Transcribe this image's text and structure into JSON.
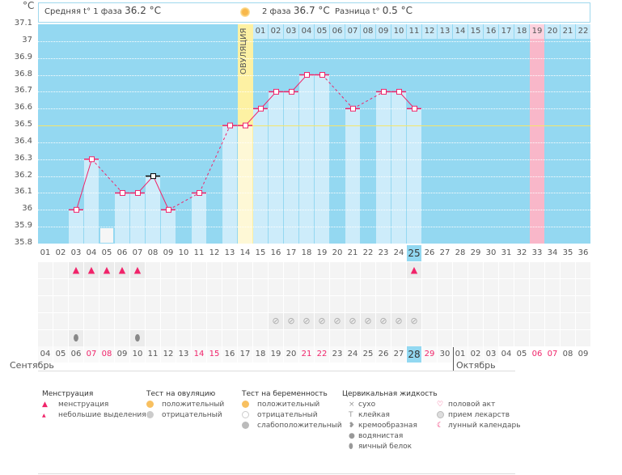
{
  "header": {
    "unit": "°C",
    "phase1_label": "Средняя t° 1 фаза",
    "phase1_value": "36.2 °C",
    "phase2_label": "2 фаза",
    "phase2_value": "36.7 °C",
    "diff_label": "Разница t°",
    "diff_value": "0.5 °C",
    "ovulation_label": "ОВУЛЯЦИЯ"
  },
  "colors": {
    "plot": "#94d8f1",
    "bar": "#cdecfa",
    "line": "#f0246a",
    "ovulation": "#fdf1a3",
    "marked_day": "#f9b7c9",
    "coverline": "#f5e56b"
  },
  "chart_data": {
    "type": "line",
    "title": "",
    "ylabel": "°C",
    "ylim": [
      35.8,
      37.1
    ],
    "yticks": [
      "37.1",
      "37",
      "36.9",
      "36.8",
      "36.7",
      "36.6",
      "36.5",
      "36.4",
      "36.3",
      "36.2",
      "36.1",
      "36",
      "35.9",
      "35.8"
    ],
    "coverline": 36.5,
    "ovulation_day": 14,
    "marked_day": 33,
    "cycle_days": [
      "01",
      "02",
      "03",
      "04",
      "05",
      "06",
      "07",
      "08",
      "09",
      "10",
      "11",
      "12",
      "13",
      "14",
      "15",
      "16",
      "17",
      "18",
      "19",
      "20",
      "21",
      "22",
      "23",
      "24",
      "25",
      "26",
      "27",
      "28",
      "29",
      "30",
      "31",
      "32",
      "33",
      "34",
      "35",
      "36"
    ],
    "phase2_days": [
      "01",
      "02",
      "03",
      "04",
      "05",
      "06",
      "07",
      "08",
      "09",
      "10",
      "11",
      "12",
      "13",
      "14",
      "15",
      "16",
      "17",
      "18",
      "19",
      "20",
      "21",
      "22"
    ],
    "points": [
      {
        "day": 3,
        "t": 36.0
      },
      {
        "day": 4,
        "t": 36.3
      },
      {
        "day": 6,
        "t": 36.1
      },
      {
        "day": 7,
        "t": 36.1
      },
      {
        "day": 8,
        "t": 36.2,
        "excluded": true
      },
      {
        "day": 9,
        "t": 36.0
      },
      {
        "day": 11,
        "t": 36.1
      },
      {
        "day": 13,
        "t": 36.5
      },
      {
        "day": 14,
        "t": 36.5
      },
      {
        "day": 15,
        "t": 36.6
      },
      {
        "day": 16,
        "t": 36.7
      },
      {
        "day": 17,
        "t": 36.7
      },
      {
        "day": 18,
        "t": 36.8
      },
      {
        "day": 19,
        "t": 36.8
      },
      {
        "day": 21,
        "t": 36.6
      },
      {
        "day": 23,
        "t": 36.7
      },
      {
        "day": 24,
        "t": 36.7
      },
      {
        "day": 25,
        "t": 36.6
      }
    ],
    "today_cycle_day": 25
  },
  "moon_day": 5,
  "rows": {
    "menstruation": {
      "3": "heavy",
      "4": "heavy",
      "5": "heavy",
      "6": "heavy",
      "7": "heavy",
      "25": "heavy"
    },
    "medication": [
      16,
      17,
      18,
      19,
      20,
      21,
      22,
      23,
      24,
      25
    ],
    "fluid_egg_white": [
      3,
      7
    ]
  },
  "calendar": {
    "dates": [
      "04",
      "05",
      "06",
      "07",
      "08",
      "09",
      "10",
      "11",
      "12",
      "13",
      "14",
      "15",
      "16",
      "17",
      "18",
      "19",
      "20",
      "21",
      "22",
      "23",
      "24",
      "25",
      "26",
      "27",
      "28",
      "29",
      "30",
      "01",
      "02",
      "03",
      "04",
      "05",
      "06",
      "07",
      "08",
      "09"
    ],
    "weekend_indexes": [
      3,
      4,
      10,
      11,
      17,
      18,
      25,
      32,
      33
    ],
    "today_index": 24,
    "month1": "Сентябрь",
    "month2": "Октябрь"
  },
  "legend": {
    "menstruation": {
      "title": "Менструация",
      "items": [
        "менструация",
        "небольшие выделения"
      ]
    },
    "ovulation_test": {
      "title": "Тест на овуляцию",
      "items": [
        "положительный",
        "отрицательный"
      ]
    },
    "pregnancy_test": {
      "title": "Тест на беременность",
      "items": [
        "положительный",
        "отрицательный",
        "слабоположительный"
      ]
    },
    "cervical": {
      "title": "Цервикальная жидкость",
      "items": [
        "сухо",
        "клейкая",
        "кремообразная",
        "водянистая",
        "яичный белок"
      ]
    },
    "other": {
      "items": [
        "половой акт",
        "прием лекарств",
        "лунный календарь"
      ]
    }
  }
}
